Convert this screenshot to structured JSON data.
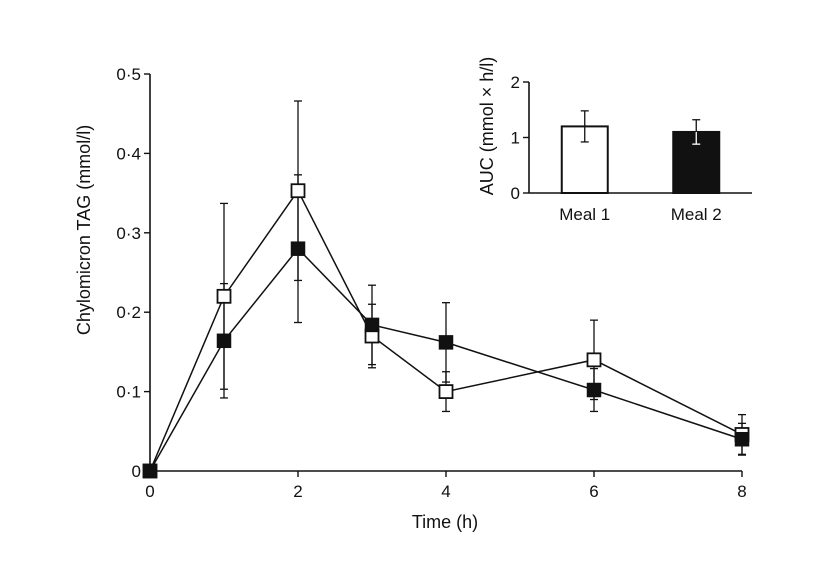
{
  "chart_data": [
    {
      "type": "line",
      "xlabel": "Time (h)",
      "ylabel": "Chylomicron TAG (mmol/l)",
      "x": [
        0,
        1,
        2,
        3,
        4,
        6,
        8
      ],
      "xlim": [
        0,
        8
      ],
      "ylim": [
        0,
        0.5
      ],
      "x_ticks": [
        0,
        2,
        4,
        6,
        8
      ],
      "x_tick_labels": [
        "0",
        "2",
        "4",
        "6",
        "8"
      ],
      "y_ticks": [
        0,
        0.1,
        0.2,
        0.3,
        0.4,
        0.5
      ],
      "y_tick_labels": [
        "0",
        "0·1",
        "0·2",
        "0·3",
        "0·4",
        "0·5"
      ],
      "grid": false,
      "series": [
        {
          "marker": "open-square",
          "values": [
            0,
            0.22,
            0.353,
            0.17,
            0.1,
            0.14,
            0.046
          ],
          "errors": [
            0,
            0.117,
            0.113,
            0.04,
            0.025,
            0.05,
            0.025
          ]
        },
        {
          "marker": "filled-square",
          "values": [
            0,
            0.164,
            0.28,
            0.184,
            0.162,
            0.102,
            0.04
          ],
          "errors": [
            0,
            0.072,
            0.093,
            0.05,
            0.05,
            0.027,
            0.02
          ]
        }
      ]
    },
    {
      "type": "bar",
      "categories": [
        "Meal 1",
        "Meal 2"
      ],
      "values": [
        1.2,
        1.1
      ],
      "errors": [
        0.28,
        0.22
      ],
      "fills": [
        "open",
        "filled"
      ],
      "ylabel": "AUC (mmol × h/l)",
      "ylim": [
        0,
        2
      ],
      "y_ticks": [
        0,
        1,
        2
      ],
      "y_tick_labels": [
        "0",
        "1",
        "2"
      ]
    }
  ]
}
